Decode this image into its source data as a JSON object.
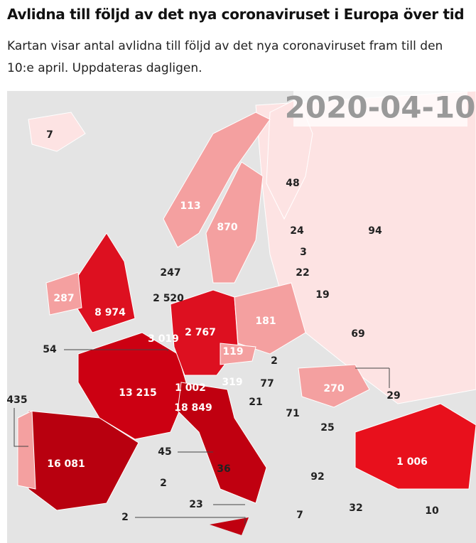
{
  "header": {
    "title": "Avlidna till följd av det nya coronaviruset i Europa över tid",
    "subtitle": "Kartan visar antal avlidna till följd av det nya coronaviruset fram till den 10:e april. Uppdateras dagligen."
  },
  "map": {
    "date": "2020-04-10",
    "labels": [
      "7",
      "48",
      "113",
      "870",
      "24",
      "94",
      "3",
      "247",
      "22",
      "287",
      "8 974",
      "2 520",
      "181",
      "19",
      "3 019",
      "2 767",
      "69",
      "54",
      "119",
      "2",
      "435",
      "13 215",
      "1 002",
      "319",
      "77",
      "270",
      "29",
      "18 849",
      "21",
      "71",
      "25",
      "45",
      "1 006",
      "16 081",
      "36",
      "92",
      "2",
      "23",
      "32",
      "7",
      "10",
      "2"
    ]
  }
}
